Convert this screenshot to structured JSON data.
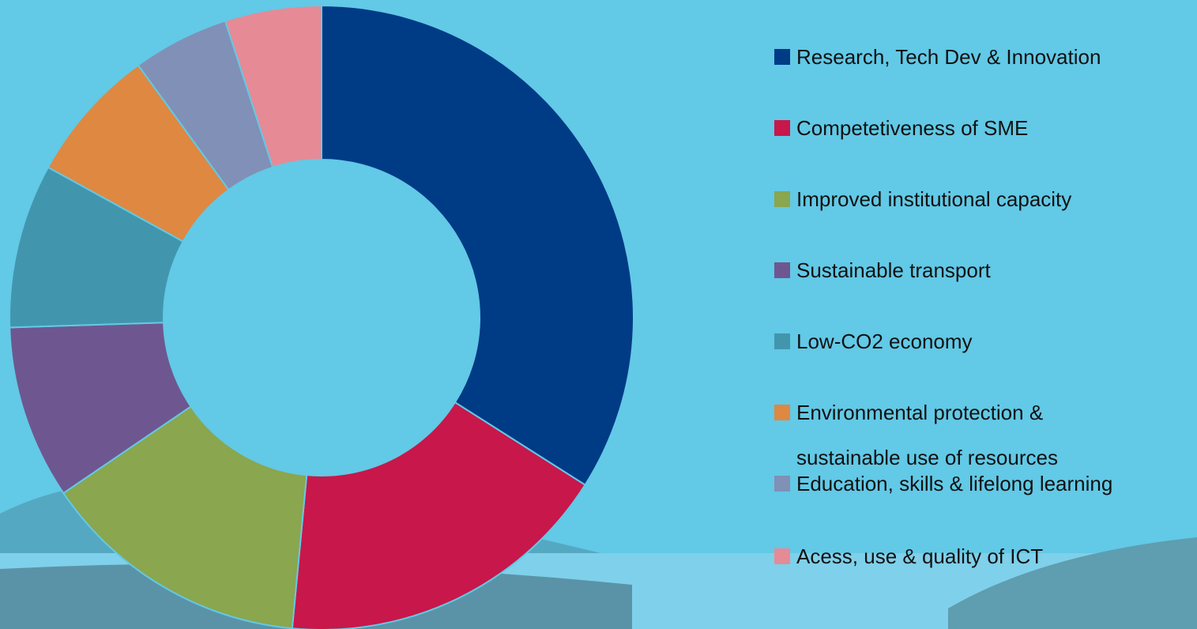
{
  "chart_data": {
    "type": "donut",
    "categories": [
      "Research, Tech Dev & Innovation",
      "Competetiveness of SME",
      "Improved institutional capacity",
      "Sustainable transport",
      "Low-CO2 economy",
      "Environmental protection & sustainable use of resources",
      "Education, skills & lifelong learning",
      "Acess, use & quality of ICT"
    ],
    "values": [
      34,
      17.5,
      14,
      9,
      8.5,
      7,
      5,
      5
    ],
    "colors": [
      "#003b86",
      "#c8174a",
      "#8aa64e",
      "#6e5790",
      "#4196ae",
      "#de8842",
      "#8190b6",
      "#e68a96"
    ],
    "legend": "right"
  }
}
